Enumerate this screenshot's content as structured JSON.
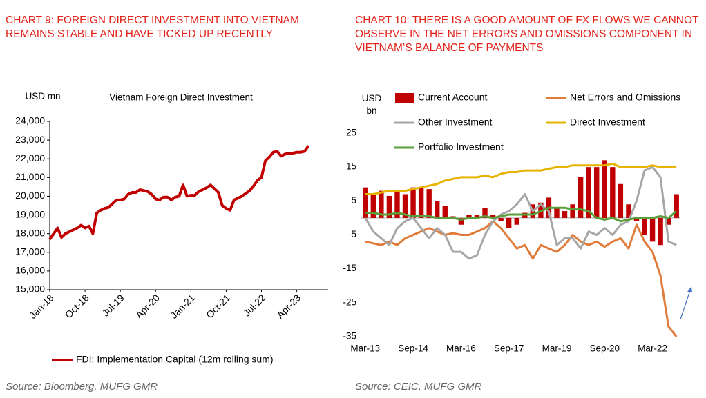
{
  "chart_data": [
    {
      "type": "line",
      "title": "CHART 9: FOREIGN DIRECT INVESTMENT INTO VIETNAM REMAINS STABLE AND HAVE TICKED UP RECENTLY",
      "subtitle": "Vietnam Foreign Direct Investment",
      "y_label": "USD mn",
      "source": "Source: Bloomberg, MUFG GMR",
      "categories": [
        "Jan-18",
        null,
        null,
        null,
        null,
        null,
        null,
        null,
        null,
        "Oct-18",
        null,
        null,
        null,
        null,
        null,
        null,
        null,
        null,
        "Jul-19",
        null,
        null,
        null,
        null,
        null,
        null,
        null,
        null,
        "Apr-20",
        null,
        null,
        null,
        null,
        null,
        null,
        null,
        null,
        "Jan-21",
        null,
        null,
        null,
        null,
        null,
        null,
        null,
        null,
        "Oct-21",
        null,
        null,
        null,
        null,
        null,
        null,
        null,
        null,
        "Jul-22",
        null,
        null,
        null,
        null,
        null,
        null,
        null,
        null,
        "Apr-23",
        null,
        null,
        null,
        null,
        null,
        null,
        null,
        null
      ],
      "series": [
        {
          "name": "FDI: Implementation Capital (12m rolling sum)",
          "color": "#c00000",
          "values": [
            17700,
            18000,
            18300,
            17800,
            18000,
            18100,
            18200,
            18300,
            18450,
            18300,
            18400,
            18000,
            19100,
            19250,
            19350,
            19400,
            19600,
            19800,
            19800,
            19850,
            20100,
            20200,
            20200,
            20350,
            20300,
            20250,
            20100,
            19850,
            19800,
            19950,
            19950,
            19800,
            19950,
            20000,
            20600,
            20000,
            20050,
            20050,
            20250,
            20350,
            20450,
            20600,
            20400,
            20200,
            19500,
            19350,
            19250,
            19800,
            19900,
            20000,
            20150,
            20300,
            20550,
            20850,
            21000,
            21900,
            22100,
            22350,
            22400,
            22150,
            22250,
            22300,
            22300,
            22350,
            22350,
            22400,
            22700,
            null,
            null,
            null,
            null,
            null
          ]
        }
      ],
      "ylim": [
        15000,
        24000
      ],
      "yticks": [
        {
          "value": 15000,
          "label": "15,000"
        },
        {
          "value": 16000,
          "label": "16,000"
        },
        {
          "value": 17000,
          "label": "17,000"
        },
        {
          "value": 18000,
          "label": "18,000"
        },
        {
          "value": 19000,
          "label": "19,000"
        },
        {
          "value": 20000,
          "label": "20,000"
        },
        {
          "value": 21000,
          "label": "21,000"
        },
        {
          "value": 22000,
          "label": "22,000"
        },
        {
          "value": 23000,
          "label": "23,000"
        },
        {
          "value": 24000,
          "label": "24,000"
        }
      ],
      "legend": "bottom-left",
      "grid": false
    },
    {
      "type": "combo",
      "title": "CHART 10: THERE IS A GOOD AMOUNT OF FX FLOWS WE CANNOT OBSERVE IN THE NET ERRORS AND OMISSIONS COMPONENT IN VIETNAM’S BALANCE OF PAYMENTS",
      "y_label": "USD bn",
      "source": "Source: CEIC, MUFG GMR",
      "categories": [
        "Mar-13",
        null,
        null,
        null,
        null,
        null,
        "Sep-14",
        null,
        null,
        null,
        null,
        null,
        "Mar-16",
        null,
        null,
        null,
        null,
        null,
        "Sep-17",
        null,
        null,
        null,
        null,
        null,
        "Mar-19",
        null,
        null,
        null,
        null,
        null,
        "Sep-20",
        null,
        null,
        null,
        null,
        null,
        "Mar-22",
        null,
        null,
        null
      ],
      "series": [
        {
          "name": "Current Account",
          "type": "bar",
          "color": "#c00000",
          "values": [
            9,
            7,
            8,
            6.5,
            8,
            7,
            9,
            9,
            8.5,
            5,
            3.5,
            0.5,
            -2,
            1,
            1,
            3,
            1,
            -1,
            -3,
            -2,
            1.5,
            4,
            4.5,
            6,
            3,
            2,
            4,
            12,
            15,
            15,
            17,
            15,
            10,
            4,
            -1,
            -5,
            -7,
            -8,
            -2,
            7
          ]
        },
        {
          "name": "Net Errors and Omissions",
          "type": "line",
          "color": "#e07b39",
          "values": [
            -7,
            -7.5,
            -8,
            -7,
            -8,
            -6,
            -5,
            -4,
            -3,
            -4,
            -5,
            -4.5,
            -5,
            -5,
            -4,
            -3,
            -1,
            -3,
            -6,
            -9,
            -8,
            -12,
            -8,
            -9,
            -10,
            -8,
            -5,
            -7,
            -8,
            -7,
            -8.5,
            -7,
            -6,
            -9,
            -2,
            -7,
            -10,
            -17,
            -32,
            -35
          ]
        },
        {
          "name": "Other Investment",
          "type": "line",
          "color": "#a6a6a6",
          "values": [
            0,
            -4,
            -6,
            -8,
            -3,
            -1,
            0,
            -3,
            -6,
            -3,
            -5,
            -10,
            -10,
            -12,
            -11,
            -5,
            -1,
            1,
            2,
            4,
            7,
            2,
            4,
            2,
            -8,
            -6,
            -6,
            -9,
            -4,
            -5,
            -3,
            -5,
            -2,
            -1,
            5,
            14,
            15,
            12,
            -7,
            -8
          ]
        },
        {
          "name": "Direct Investment",
          "type": "line",
          "color": "#e6b400",
          "values": [
            7,
            7,
            7.5,
            8,
            8,
            8,
            8.5,
            9,
            9.5,
            10,
            11,
            11.5,
            12,
            12,
            12,
            12.5,
            12,
            13,
            13.5,
            13.5,
            14,
            14,
            14,
            14.5,
            15,
            15,
            15.5,
            15.5,
            15.5,
            15.5,
            15.5,
            16,
            15,
            15,
            15,
            15,
            15.5,
            15,
            15,
            15
          ]
        },
        {
          "name": "Portfolio Investment",
          "type": "line",
          "color": "#5a9e3a",
          "values": [
            1.5,
            1.5,
            1,
            1,
            1.5,
            1,
            0.5,
            0.5,
            0.5,
            0,
            0,
            0,
            -0.5,
            0,
            0,
            0.5,
            0,
            0.5,
            1,
            1,
            1,
            1,
            2,
            3,
            3,
            3,
            2.5,
            2.5,
            2,
            0,
            -0.5,
            0,
            -1,
            -0.5,
            0,
            0,
            0,
            0.5,
            0,
            2
          ]
        }
      ],
      "ylim": [
        -35,
        25
      ],
      "yticks": [
        -35,
        -25,
        -15,
        -5,
        5,
        15,
        25
      ],
      "legend": "top",
      "grid": false
    }
  ]
}
